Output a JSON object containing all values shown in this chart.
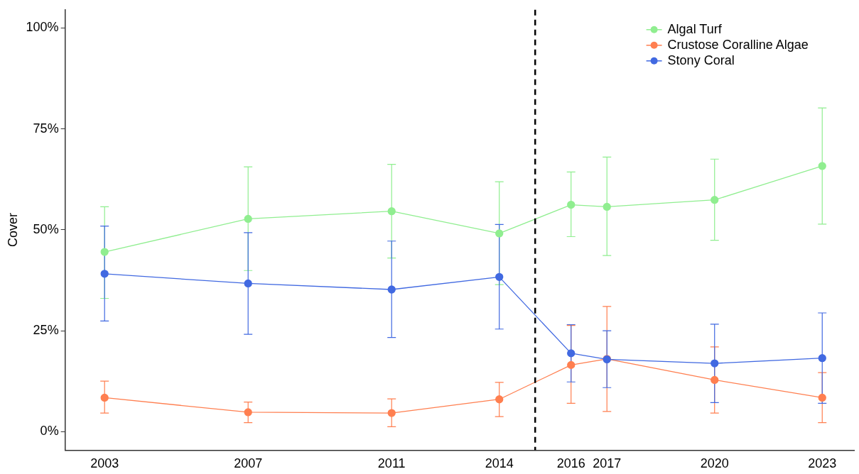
{
  "chart_data": {
    "type": "line",
    "ylabel": "Cover",
    "x": [
      2003,
      2007,
      2011,
      2014,
      2016,
      2017,
      2020,
      2023
    ],
    "xlim": [
      2001.9,
      2023.9
    ],
    "xticks": [
      2003,
      2007,
      2011,
      2014,
      2016,
      2017,
      2020,
      2023
    ],
    "ylim": [
      -4.6,
      104.5
    ],
    "yticks": [
      {
        "value": 0,
        "label": "0%"
      },
      {
        "value": 25,
        "label": "25%"
      },
      {
        "value": 50,
        "label": "50%"
      },
      {
        "value": 75,
        "label": "75%"
      },
      {
        "value": 100,
        "label": "100%"
      }
    ],
    "grid": false,
    "legend": "top right",
    "marker": "circle",
    "line_style": "solid",
    "ref_lines": [
      {
        "axis": "x",
        "value": 2015,
        "color": "#000000",
        "line_style": "dashed"
      }
    ],
    "series": [
      {
        "name": "Algal Turf",
        "color": "#90ee90",
        "values": [
          44.5,
          52.7,
          54.6,
          49.1,
          56.2,
          55.7,
          57.4,
          65.8
        ],
        "errors": [
          [
            33,
            55.7
          ],
          [
            39.9,
            65.6
          ],
          [
            43,
            66.2
          ],
          [
            36.4,
            61.9
          ],
          [
            48.3,
            64.3
          ],
          [
            43.6,
            68
          ],
          [
            47.4,
            67.5
          ],
          [
            51.4,
            80.2
          ]
        ]
      },
      {
        "name": "Crustose Coralline Algae",
        "color": "#ff7f50",
        "values": [
          8.4,
          4.8,
          4.6,
          8,
          16.5,
          18,
          12.8,
          8.4
        ],
        "errors": [
          [
            4.6,
            12.5
          ],
          [
            2.2,
            7.3
          ],
          [
            1.2,
            8.1
          ],
          [
            3.7,
            12.2
          ],
          [
            7,
            26.3
          ],
          [
            5,
            31
          ],
          [
            4.6,
            21
          ],
          [
            2.2,
            14.6
          ]
        ]
      },
      {
        "name": "Stony Coral",
        "color": "#4169e1",
        "values": [
          39.1,
          36.7,
          35.2,
          38.3,
          19.4,
          17.9,
          16.9,
          18.2
        ],
        "errors": [
          [
            27.4,
            50.9
          ],
          [
            24.1,
            49.3
          ],
          [
            23.3,
            47.2
          ],
          [
            25.4,
            51.3
          ],
          [
            12.3,
            26.5
          ],
          [
            10.9,
            25
          ],
          [
            7.2,
            26.6
          ],
          [
            7,
            29.4
          ]
        ]
      }
    ]
  }
}
